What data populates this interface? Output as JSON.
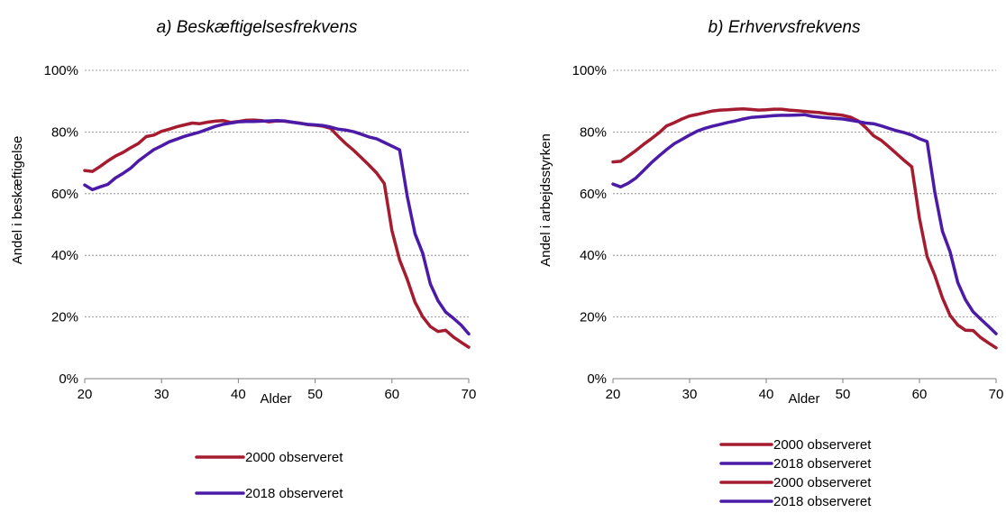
{
  "chart_data": [
    {
      "type": "line",
      "title": "a) Beskæftigelsesfrekvens",
      "xlabel": "Alder",
      "ylabel": "Andel i beskæftigelse",
      "xlim": [
        20,
        70
      ],
      "ylim": [
        0,
        100
      ],
      "x_ticks": [
        "20",
        "30",
        "40",
        "50",
        "60",
        "70"
      ],
      "y_ticks": [
        "0%",
        "20%",
        "40%",
        "60%",
        "80%",
        "100%"
      ],
      "grid": true,
      "legend": "bottom",
      "x": [
        20,
        21,
        22,
        23,
        24,
        25,
        26,
        27,
        28,
        29,
        30,
        31,
        32,
        33,
        34,
        35,
        36,
        37,
        38,
        39,
        40,
        41,
        42,
        43,
        44,
        45,
        46,
        47,
        48,
        49,
        50,
        51,
        52,
        53,
        54,
        55,
        56,
        57,
        58,
        59,
        60,
        61,
        62,
        63,
        64,
        65,
        66,
        67,
        68,
        69,
        70
      ],
      "series": [
        {
          "name": "2000 observeret",
          "color": "#A51C30",
          "values": [
            67.5,
            67.2,
            68.8,
            70.6,
            72.2,
            73.4,
            74.9,
            76.3,
            78.5,
            79,
            80.2,
            80.9,
            81.7,
            82.3,
            82.9,
            82.7,
            83.2,
            83.5,
            83.7,
            83.1,
            83.4,
            83.8,
            83.9,
            83.7,
            83.3,
            83.6,
            83.5,
            83.2,
            82.9,
            82.4,
            82.2,
            81.9,
            81.2,
            78.6,
            76.2,
            74.1,
            71.7,
            69.3,
            66.7,
            63.3,
            48,
            38.5,
            32.2,
            24.8,
            20.1,
            16.9,
            15.3,
            15.7,
            13.5,
            11.8,
            10.2
          ]
        },
        {
          "name": "2018 observeret",
          "color": "#4B1BA8",
          "values": [
            62.8,
            61.3,
            62.2,
            63,
            65.1,
            66.6,
            68.3,
            70.6,
            72.5,
            74.3,
            75.5,
            76.8,
            77.7,
            78.6,
            79.3,
            80,
            80.9,
            81.8,
            82.5,
            82.9,
            83.3,
            83.4,
            83.4,
            83.5,
            83.6,
            83.7,
            83.6,
            83.2,
            82.8,
            82.5,
            82.3,
            82.1,
            81.6,
            80.9,
            80.6,
            80.1,
            79.3,
            78.4,
            77.8,
            76.6,
            75.4,
            74.2,
            59.1,
            47,
            40.7,
            30.7,
            25.3,
            21.6,
            19.6,
            17.4,
            14.5
          ]
        }
      ],
      "legend_entries": [
        "2000 observeret",
        "2018 observeret"
      ]
    },
    {
      "type": "line",
      "title": "b) Erhvervsfrekvens",
      "xlabel": "Alder",
      "ylabel": "Andel i arbejdsstyrken",
      "xlim": [
        20,
        70
      ],
      "ylim": [
        0,
        100
      ],
      "x_ticks": [
        "20",
        "30",
        "40",
        "50",
        "60",
        "70"
      ],
      "y_ticks": [
        "0%",
        "20%",
        "40%",
        "60%",
        "80%",
        "100%"
      ],
      "grid": true,
      "legend": "bottom",
      "x": [
        20,
        21,
        22,
        23,
        24,
        25,
        26,
        27,
        28,
        29,
        30,
        31,
        32,
        33,
        34,
        35,
        36,
        37,
        38,
        39,
        40,
        41,
        42,
        43,
        44,
        45,
        46,
        47,
        48,
        49,
        50,
        51,
        52,
        53,
        54,
        55,
        56,
        57,
        58,
        59,
        60,
        61,
        62,
        63,
        64,
        65,
        66,
        67,
        68,
        69,
        70
      ],
      "series": [
        {
          "name": "2000 observeret",
          "color": "#A51C30",
          "values": [
            70.3,
            70.5,
            72.2,
            74,
            76,
            77.8,
            79.7,
            82,
            83,
            84.2,
            85.2,
            85.7,
            86.3,
            86.8,
            87.1,
            87.2,
            87.4,
            87.5,
            87.3,
            87.1,
            87.2,
            87.4,
            87.4,
            87.1,
            86.9,
            86.7,
            86.5,
            86.3,
            85.9,
            85.7,
            85.4,
            84.8,
            83.6,
            81.4,
            78.8,
            77.3,
            75.2,
            73,
            70.8,
            68.7,
            52,
            39.6,
            33.5,
            26.2,
            20.5,
            17.4,
            15.7,
            15.6,
            13.3,
            11.6,
            10
          ]
        },
        {
          "name": "2018 observeret",
          "color": "#4B1BA8",
          "values": [
            63.1,
            62.2,
            63.4,
            65.1,
            67.5,
            70,
            72.2,
            74.3,
            76.2,
            77.6,
            79,
            80.3,
            81.2,
            81.9,
            82.5,
            83.1,
            83.6,
            84.2,
            84.7,
            84.9,
            85.1,
            85.3,
            85.4,
            85.4,
            85.5,
            85.6,
            85.1,
            84.8,
            84.6,
            84.4,
            84.2,
            83.8,
            83.4,
            82.9,
            82.7,
            82,
            81.2,
            80.4,
            79.8,
            79,
            77.8,
            76.9,
            60.5,
            47.8,
            41.1,
            31.2,
            25.6,
            21.7,
            19.3,
            17,
            14.6
          ]
        }
      ],
      "legend_entries": [
        "2000 observeret",
        "2018 observeret",
        "2000 observeret",
        "2018 observeret"
      ]
    }
  ]
}
